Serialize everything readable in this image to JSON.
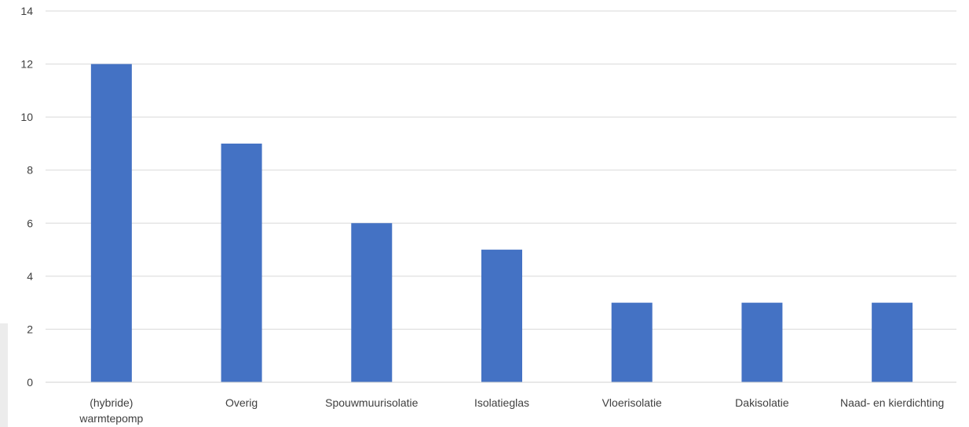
{
  "chart_data": {
    "type": "bar",
    "title": "",
    "xlabel": "",
    "ylabel": "",
    "categories": [
      "(hybride) warmtepomp",
      "Overig",
      "Spouwmuurisolatie",
      "Isolatieglas",
      "Vloerisolatie",
      "Dakisolatie",
      "Naad- en kierdichting"
    ],
    "category_lines": [
      [
        "(hybride)",
        "warmtepomp"
      ],
      [
        "Overig"
      ],
      [
        "Spouwmuurisolatie"
      ],
      [
        "Isolatieglas"
      ],
      [
        "Vloerisolatie"
      ],
      [
        "Dakisolatie"
      ],
      [
        "Naad- en kierdichting"
      ]
    ],
    "values": [
      12,
      9,
      6,
      5,
      3,
      3,
      3
    ],
    "ylim": [
      0,
      14
    ],
    "yticks": [
      0,
      2,
      4,
      6,
      8,
      10,
      12,
      14
    ],
    "grid": true,
    "legend": "none",
    "bar_color": "#4472c4",
    "grid_color": "#d9d9d9"
  }
}
